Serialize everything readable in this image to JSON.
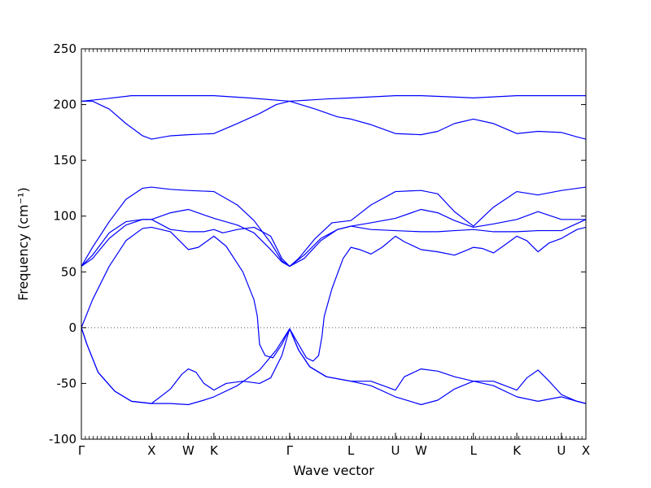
{
  "chart_data": {
    "type": "line",
    "title": "",
    "xlabel": "Wave vector",
    "ylabel": "Frequency (cm⁻¹)",
    "ylabel_unit": "cm⁻¹",
    "ylim": [
      -100,
      250
    ],
    "yticks": [
      -100,
      -50,
      0,
      50,
      100,
      150,
      200,
      250
    ],
    "xlim": [
      0,
      4.53
    ],
    "xticks": [
      {
        "x": 0.0,
        "label": "Γ"
      },
      {
        "x": 0.63,
        "label": "X"
      },
      {
        "x": 0.96,
        "label": "W"
      },
      {
        "x": 1.19,
        "label": "K"
      },
      {
        "x": 1.87,
        "label": "Γ"
      },
      {
        "x": 2.42,
        "label": "L"
      },
      {
        "x": 2.82,
        "label": "U"
      },
      {
        "x": 3.05,
        "label": "W"
      },
      {
        "x": 3.52,
        "label": "L"
      },
      {
        "x": 3.91,
        "label": "K"
      },
      {
        "x": 4.31,
        "label": "U"
      },
      {
        "x": 4.53,
        "label": "X"
      }
    ],
    "zero_line": true,
    "grid": false,
    "line_color": "#0000ff",
    "series": [
      {
        "points": [
          [
            0,
            203
          ],
          [
            0.2,
            205
          ],
          [
            0.45,
            208
          ],
          [
            0.63,
            208
          ],
          [
            0.96,
            208
          ],
          [
            1.19,
            208
          ],
          [
            1.5,
            206
          ],
          [
            1.87,
            203
          ],
          [
            2.2,
            205
          ],
          [
            2.42,
            206
          ],
          [
            2.82,
            208
          ],
          [
            3.05,
            208
          ],
          [
            3.3,
            207
          ],
          [
            3.52,
            206
          ],
          [
            3.91,
            208
          ],
          [
            4.31,
            208
          ],
          [
            4.53,
            208
          ]
        ]
      },
      {
        "points": [
          [
            0,
            203
          ],
          [
            0.1,
            203
          ],
          [
            0.25,
            196
          ],
          [
            0.4,
            183
          ],
          [
            0.55,
            172
          ],
          [
            0.63,
            169
          ],
          [
            0.8,
            172
          ],
          [
            0.96,
            173
          ],
          [
            1.19,
            174
          ],
          [
            1.4,
            183
          ],
          [
            1.6,
            192
          ],
          [
            1.75,
            200
          ],
          [
            1.87,
            203
          ],
          [
            2.1,
            196
          ],
          [
            2.3,
            189
          ],
          [
            2.42,
            187
          ],
          [
            2.6,
            182
          ],
          [
            2.82,
            174
          ],
          [
            3.05,
            173
          ],
          [
            3.2,
            176
          ],
          [
            3.35,
            183
          ],
          [
            3.52,
            187
          ],
          [
            3.7,
            183
          ],
          [
            3.91,
            174
          ],
          [
            4.1,
            176
          ],
          [
            4.31,
            175
          ],
          [
            4.45,
            171
          ],
          [
            4.53,
            169
          ]
        ]
      },
      {
        "points": [
          [
            0,
            55
          ],
          [
            0.1,
            72
          ],
          [
            0.25,
            95
          ],
          [
            0.4,
            115
          ],
          [
            0.55,
            125
          ],
          [
            0.63,
            126
          ],
          [
            0.8,
            124
          ],
          [
            0.96,
            123
          ],
          [
            1.19,
            122
          ],
          [
            1.4,
            110
          ],
          [
            1.55,
            96
          ],
          [
            1.7,
            76
          ],
          [
            1.8,
            60
          ],
          [
            1.87,
            55
          ],
          [
            1.95,
            62
          ],
          [
            2.1,
            80
          ],
          [
            2.25,
            94
          ],
          [
            2.42,
            96
          ],
          [
            2.6,
            110
          ],
          [
            2.82,
            122
          ],
          [
            3.05,
            123
          ],
          [
            3.2,
            120
          ],
          [
            3.35,
            104
          ],
          [
            3.52,
            91
          ],
          [
            3.7,
            108
          ],
          [
            3.91,
            122
          ],
          [
            4.1,
            119
          ],
          [
            4.31,
            123
          ],
          [
            4.53,
            126
          ]
        ]
      },
      {
        "points": [
          [
            0,
            55
          ],
          [
            0.1,
            65
          ],
          [
            0.25,
            85
          ],
          [
            0.4,
            95
          ],
          [
            0.55,
            97
          ],
          [
            0.63,
            97
          ],
          [
            0.8,
            103
          ],
          [
            0.96,
            106
          ],
          [
            1.19,
            98
          ],
          [
            1.4,
            92
          ],
          [
            1.55,
            85
          ],
          [
            1.7,
            70
          ],
          [
            1.8,
            59
          ],
          [
            1.87,
            55
          ],
          [
            2.0,
            65
          ],
          [
            2.15,
            80
          ],
          [
            2.3,
            88
          ],
          [
            2.42,
            91
          ],
          [
            2.6,
            94
          ],
          [
            2.82,
            98
          ],
          [
            3.05,
            106
          ],
          [
            3.2,
            103
          ],
          [
            3.35,
            96
          ],
          [
            3.52,
            90
          ],
          [
            3.7,
            93
          ],
          [
            3.91,
            97
          ],
          [
            4.1,
            104
          ],
          [
            4.31,
            97
          ],
          [
            4.53,
            97
          ]
        ]
      },
      {
        "points": [
          [
            0,
            55
          ],
          [
            0.1,
            62
          ],
          [
            0.25,
            80
          ],
          [
            0.4,
            92
          ],
          [
            0.55,
            97
          ],
          [
            0.63,
            97
          ],
          [
            0.8,
            88
          ],
          [
            0.96,
            86
          ],
          [
            1.1,
            86
          ],
          [
            1.19,
            88
          ],
          [
            1.27,
            85
          ],
          [
            1.4,
            88
          ],
          [
            1.55,
            90
          ],
          [
            1.7,
            82
          ],
          [
            1.8,
            62
          ],
          [
            1.87,
            55
          ],
          [
            2.0,
            62
          ],
          [
            2.15,
            78
          ],
          [
            2.3,
            88
          ],
          [
            2.42,
            91
          ],
          [
            2.6,
            88
          ],
          [
            2.82,
            87
          ],
          [
            3.05,
            86
          ],
          [
            3.2,
            86
          ],
          [
            3.35,
            87
          ],
          [
            3.52,
            88
          ],
          [
            3.7,
            86
          ],
          [
            3.91,
            86
          ],
          [
            4.1,
            87
          ],
          [
            4.31,
            87
          ],
          [
            4.53,
            97
          ]
        ]
      },
      {
        "points": [
          [
            0,
            0
          ],
          [
            0.1,
            25
          ],
          [
            0.25,
            55
          ],
          [
            0.4,
            78
          ],
          [
            0.55,
            89
          ],
          [
            0.63,
            90
          ],
          [
            0.8,
            86
          ],
          [
            0.96,
            70
          ],
          [
            1.05,
            72
          ],
          [
            1.19,
            82
          ],
          [
            1.3,
            73
          ],
          [
            1.45,
            50
          ],
          [
            1.55,
            25
          ],
          [
            1.58,
            10
          ],
          [
            1.6,
            -15
          ],
          [
            1.65,
            -25
          ],
          [
            1.72,
            -27
          ],
          [
            1.8,
            -15
          ],
          [
            1.87,
            -1
          ],
          [
            1.95,
            -15
          ],
          [
            2.02,
            -27
          ],
          [
            2.08,
            -30
          ],
          [
            2.13,
            -25
          ],
          [
            2.16,
            -8
          ],
          [
            2.18,
            10
          ],
          [
            2.25,
            35
          ],
          [
            2.35,
            62
          ],
          [
            2.42,
            72
          ],
          [
            2.5,
            70
          ],
          [
            2.6,
            66
          ],
          [
            2.7,
            72
          ],
          [
            2.82,
            82
          ],
          [
            2.9,
            77
          ],
          [
            3.05,
            70
          ],
          [
            3.2,
            68
          ],
          [
            3.35,
            65
          ],
          [
            3.45,
            69
          ],
          [
            3.52,
            72
          ],
          [
            3.6,
            71
          ],
          [
            3.7,
            67
          ],
          [
            3.8,
            74
          ],
          [
            3.91,
            82
          ],
          [
            4.0,
            78
          ],
          [
            4.1,
            68
          ],
          [
            4.2,
            76
          ],
          [
            4.31,
            80
          ],
          [
            4.45,
            88
          ],
          [
            4.53,
            90
          ]
        ]
      },
      {
        "points": [
          [
            0,
            0
          ],
          [
            0.05,
            -15
          ],
          [
            0.15,
            -40
          ],
          [
            0.3,
            -57
          ],
          [
            0.45,
            -66
          ],
          [
            0.63,
            -68
          ],
          [
            0.8,
            -55
          ],
          [
            0.9,
            -42
          ],
          [
            0.96,
            -37
          ],
          [
            1.03,
            -40
          ],
          [
            1.1,
            -50
          ],
          [
            1.19,
            -56
          ],
          [
            1.3,
            -50
          ],
          [
            1.45,
            -48
          ],
          [
            1.6,
            -50
          ],
          [
            1.7,
            -45
          ],
          [
            1.8,
            -25
          ],
          [
            1.87,
            -1
          ],
          [
            1.95,
            -20
          ],
          [
            2.05,
            -35
          ],
          [
            2.2,
            -44
          ],
          [
            2.42,
            -48
          ],
          [
            2.6,
            -48
          ],
          [
            2.82,
            -56
          ],
          [
            2.9,
            -44
          ],
          [
            3.05,
            -37
          ],
          [
            3.2,
            -39
          ],
          [
            3.35,
            -44
          ],
          [
            3.52,
            -48
          ],
          [
            3.7,
            -48
          ],
          [
            3.91,
            -56
          ],
          [
            4.0,
            -45
          ],
          [
            4.1,
            -38
          ],
          [
            4.2,
            -48
          ],
          [
            4.31,
            -60
          ],
          [
            4.45,
            -66
          ],
          [
            4.53,
            -68
          ]
        ]
      },
      {
        "points": [
          [
            0,
            0
          ],
          [
            0.05,
            -15
          ],
          [
            0.15,
            -40
          ],
          [
            0.3,
            -57
          ],
          [
            0.45,
            -66
          ],
          [
            0.63,
            -68
          ],
          [
            0.8,
            -68
          ],
          [
            0.96,
            -69
          ],
          [
            1.1,
            -65
          ],
          [
            1.19,
            -62
          ],
          [
            1.4,
            -52
          ],
          [
            1.6,
            -38
          ],
          [
            1.75,
            -20
          ],
          [
            1.87,
            -1
          ],
          [
            1.95,
            -20
          ],
          [
            2.05,
            -35
          ],
          [
            2.2,
            -44
          ],
          [
            2.42,
            -48
          ],
          [
            2.6,
            -52
          ],
          [
            2.82,
            -62
          ],
          [
            3.05,
            -69
          ],
          [
            3.2,
            -65
          ],
          [
            3.35,
            -55
          ],
          [
            3.52,
            -48
          ],
          [
            3.7,
            -52
          ],
          [
            3.91,
            -62
          ],
          [
            4.1,
            -66
          ],
          [
            4.31,
            -62
          ],
          [
            4.45,
            -66
          ],
          [
            4.53,
            -68
          ]
        ]
      }
    ]
  }
}
